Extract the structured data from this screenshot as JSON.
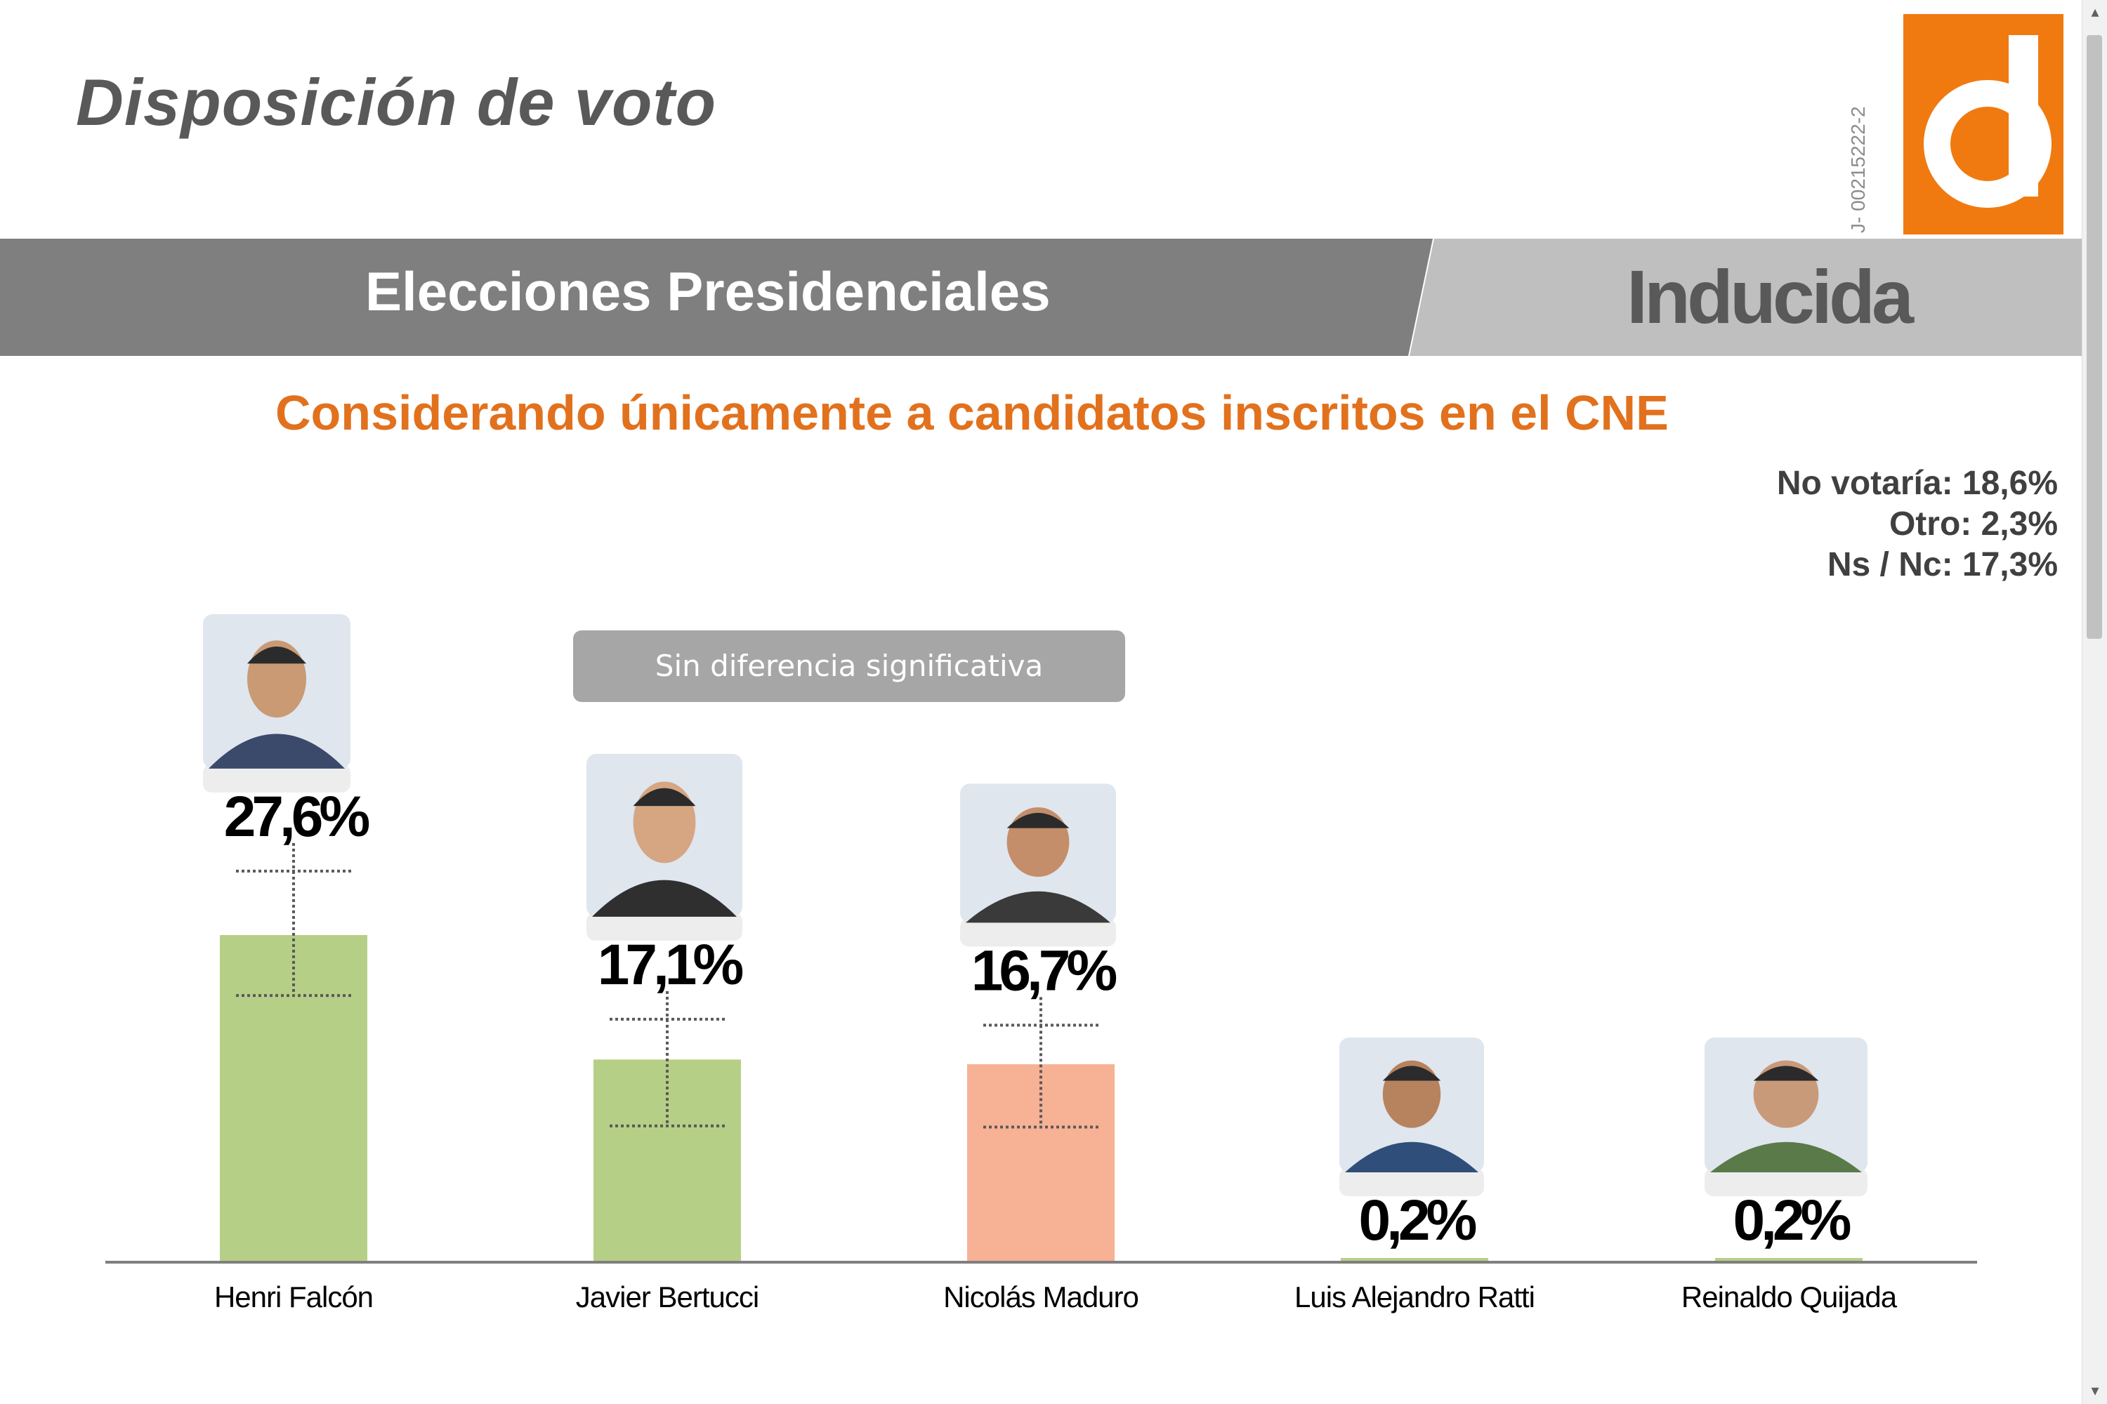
{
  "header": {
    "title": "Disposición de voto",
    "rif": "J- 00215222-2",
    "logo_letter": "d"
  },
  "band": {
    "left_label": "Elecciones Presidenciales",
    "right_label": "Inducida"
  },
  "subtitle": "Considerando únicamente a candidatos inscritos en el CNE",
  "side_notes": [
    "No votaría: 18,6%",
    "Otro: 2,3%",
    "Ns / Nc: 17,3%"
  ],
  "note_banner": "Sin diferencia significativa",
  "colors": {
    "accent_orange": "#f07a10",
    "subtitle_orange": "#e2711d",
    "band_dark": "#7f7f7f",
    "band_light": "#bfbfbf",
    "bar_green": "#b6cf86",
    "bar_salmon": "#f7b195",
    "axis": "#7f7f7f"
  },
  "chart_data": {
    "type": "bar",
    "categories": [
      "Henri Falcón",
      "Javier Bertucci",
      "Nicolás Maduro",
      "Luis Alejandro Ratti",
      "Reinaldo Quijada"
    ],
    "values": [
      27.6,
      17.1,
      16.7,
      0.2,
      0.2
    ],
    "value_labels": [
      "27,6%",
      "17,1%",
      "16,7%",
      "0,2%",
      "0,2%"
    ],
    "bar_colors": [
      "#b6cf86",
      "#b6cf86",
      "#f7b195",
      "#b6cf86",
      "#b6cf86"
    ],
    "error_bars": [
      {
        "low": 22.5,
        "high": 33.0
      },
      {
        "low": 11.5,
        "high": 20.5
      },
      {
        "low": 11.4,
        "high": 20.0
      },
      null,
      null
    ],
    "photos": [
      "candidate-photo-falcon",
      "candidate-photo-bertucci",
      "candidate-photo-maduro",
      "candidate-photo-ratti",
      "candidate-photo-quijada"
    ],
    "ylim": [
      0,
      30
    ],
    "grid": false,
    "legend": "none"
  }
}
